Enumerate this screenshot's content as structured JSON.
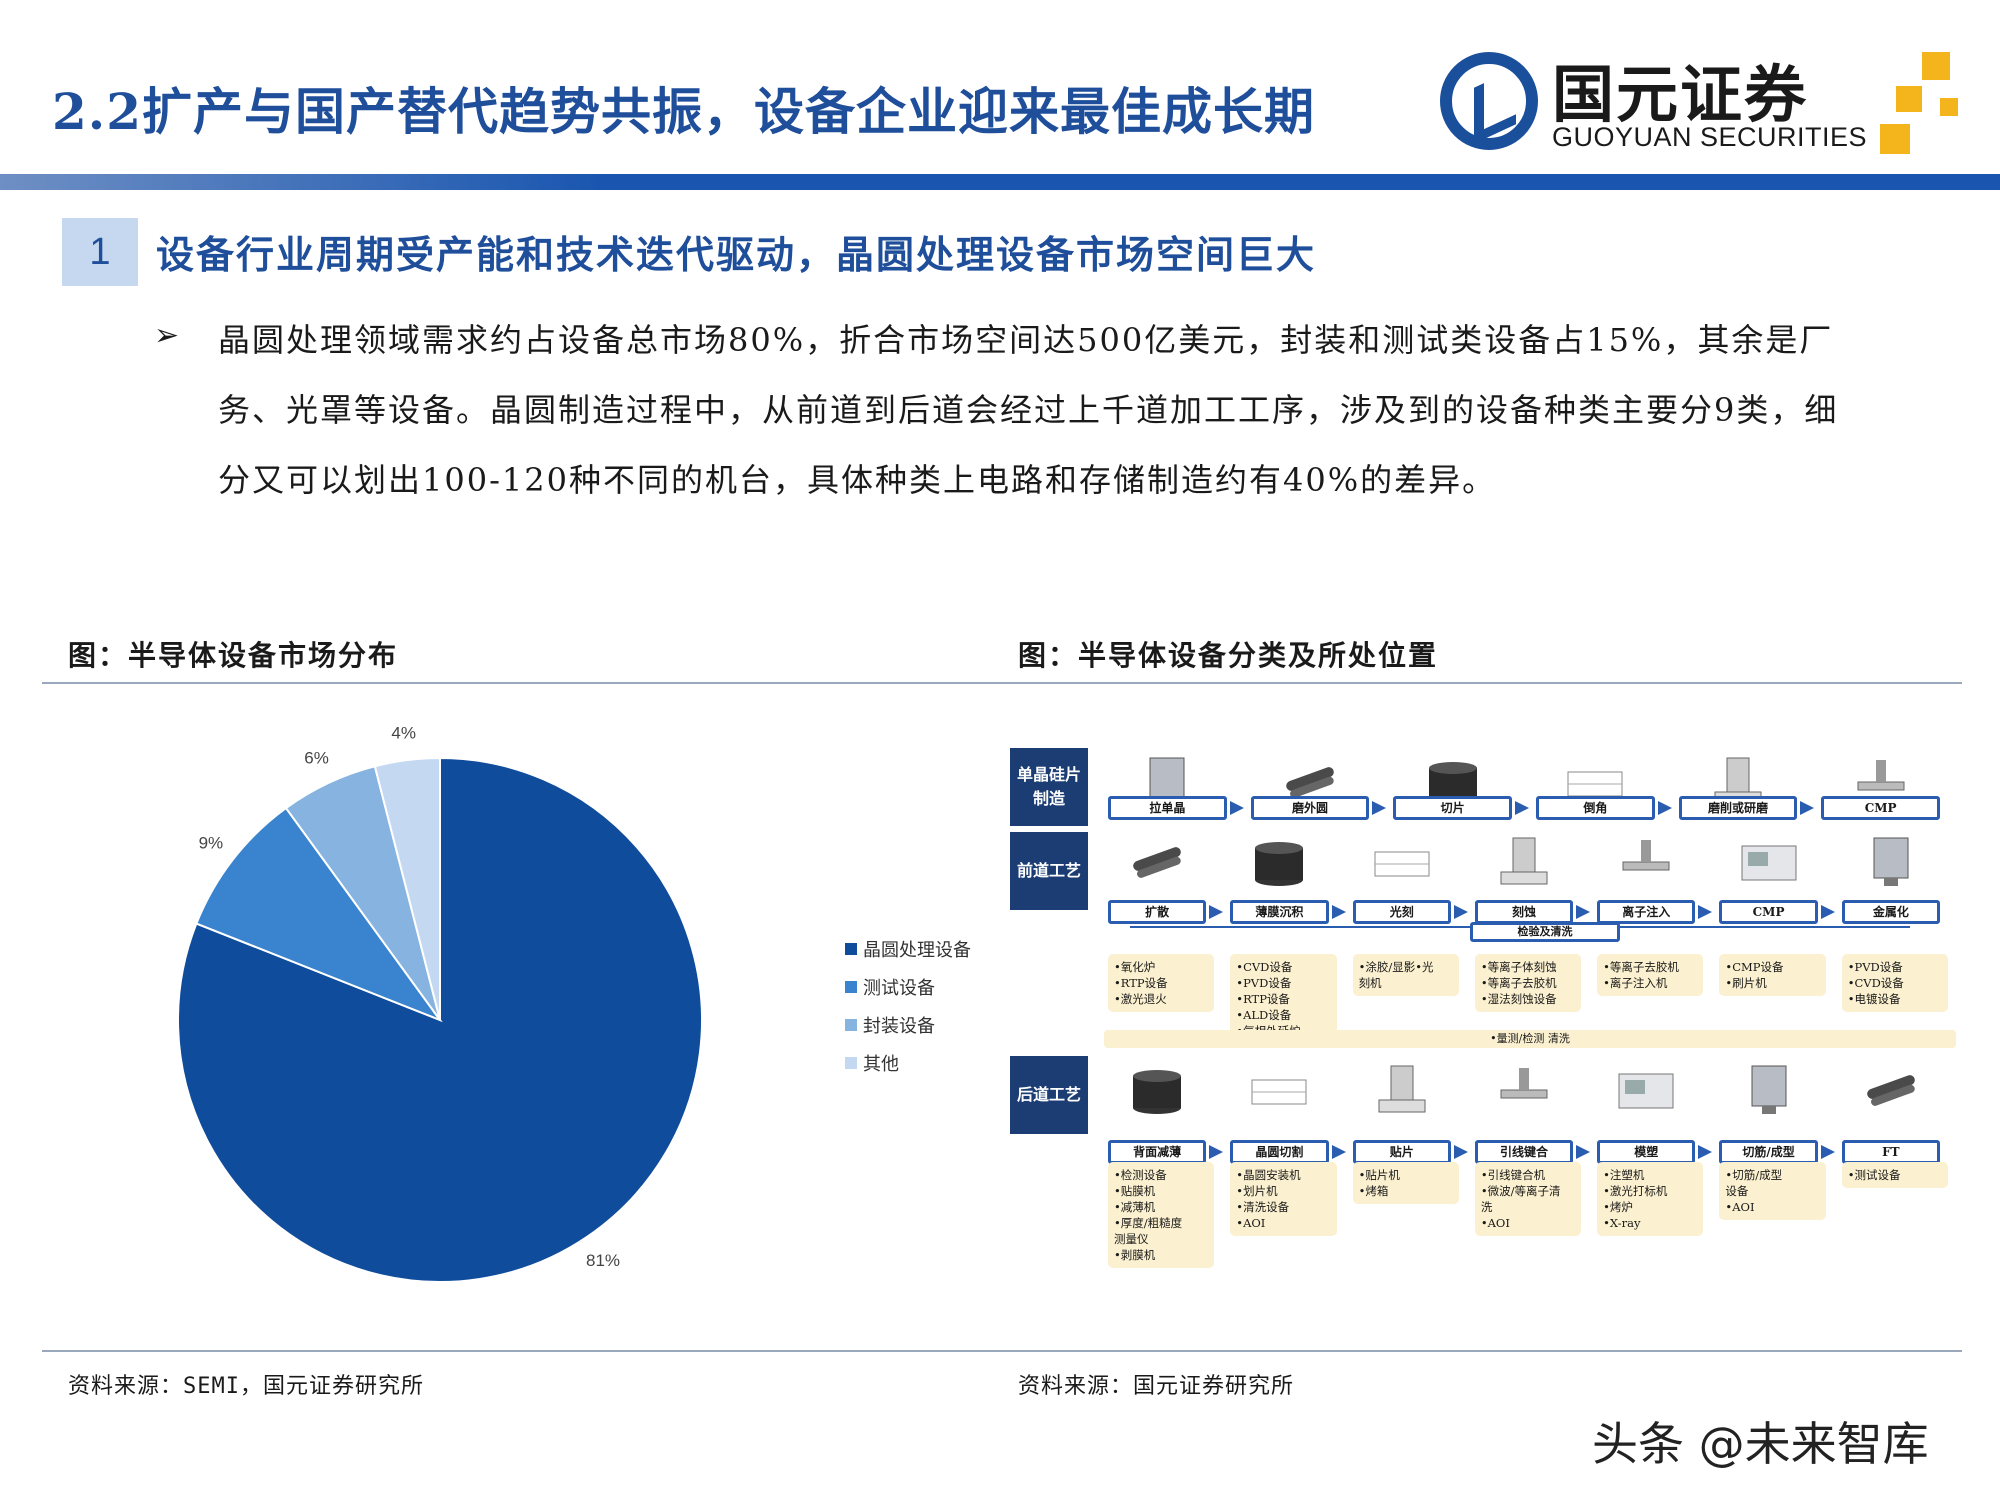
{
  "header": {
    "title": "2.2扩产与国产替代趋势共振，设备企业迎来最佳成长期",
    "logo_name": "国元证券",
    "logo_en": "GUOYUAN SECURITIES",
    "brand_color": "#1f4e9a",
    "accent_color": "#f3b51b"
  },
  "section": {
    "number": "1",
    "title": "设备行业周期受产能和技术迭代驱动，晶圆处理设备市场空间巨大"
  },
  "body": {
    "bullet_icon": "arrow-bullet-icon",
    "text": "晶圆处理领域需求约占设备总市场80%，折合市场空间达500亿美元，封装和测试类设备占15%，其余是厂务、光罩等设备。晶圆制造过程中，从前道到后道会经过上千道加工工序，涉及到的设备种类主要分9类，细分又可以划出100-120种不同的机台，具体种类上电路和存储制造约有40%的差异。"
  },
  "figures": {
    "left_title": "图：半导体设备市场分布",
    "right_title": "图：半导体设备分类及所处位置"
  },
  "chart_data": {
    "type": "pie",
    "title": "",
    "legend_position": "right",
    "categories": [
      "晶圆处理设备",
      "测试设备",
      "封装设备",
      "其他"
    ],
    "values": [
      81,
      9,
      6,
      4
    ],
    "labels": [
      "81%",
      "9%",
      "6%",
      "4%"
    ],
    "colors": [
      "#0f4c9c",
      "#3a84cf",
      "#86b3e0",
      "#c4d9f1"
    ]
  },
  "diagram": {
    "stages": [
      {
        "label": "单晶硅片制造",
        "steps": [
          "拉单晶",
          "磨外圆",
          "切片",
          "倒角",
          "磨削或研磨",
          "CMP"
        ]
      },
      {
        "label": "前道工艺",
        "steps": [
          "扩散",
          "薄膜沉积",
          "光刻",
          "刻蚀",
          "离子注入",
          "CMP",
          "金属化"
        ],
        "inspect_label": "检验及清洗",
        "equipment": [
          [
            "•氧化炉",
            "•RTP设备",
            "•激光退火"
          ],
          [
            "•CVD设备",
            "•PVD设备",
            "•RTP设备",
            "•ALD设备",
            "•气相外延炉"
          ],
          [
            "•涂胶/显影•光",
            "刻机"
          ],
          [
            "•等离子体刻蚀",
            "•等离子去胶机",
            "•湿法刻蚀设备"
          ],
          [
            "•等离子去胶机",
            "•离子注入机"
          ],
          [
            "•CMP设备",
            "•刷片机"
          ],
          [
            "•PVD设备",
            "•CVD设备",
            "•电镀设备"
          ]
        ],
        "band_label": "•量测/检测 清洗"
      },
      {
        "label": "后道工艺",
        "steps": [
          "背面减薄",
          "晶圆切割",
          "贴片",
          "引线键合",
          "模塑",
          "切筋/成型",
          "FT"
        ],
        "equipment": [
          [
            "•检测设备",
            "•贴膜机",
            "•减薄机",
            "•厚度/粗糙度",
            "测量仪",
            "•剥膜机"
          ],
          [
            "•晶圆安装机",
            "•划片机",
            "•清洗设备",
            "•AOI"
          ],
          [
            "•贴片机",
            "•烤箱"
          ],
          [
            "•引线键合机",
            "•微波/等离子清",
            "洗",
            "•AOI"
          ],
          [
            "•注塑机",
            "•激光打标机",
            "•烤炉",
            "•X-ray"
          ],
          [
            "•切筋/成型",
            "设备",
            "•AOI"
          ],
          [
            "•测试设备"
          ]
        ]
      }
    ]
  },
  "sources": {
    "left": "资料来源：SEMI，国元证券研究所",
    "right": "资料来源：国元证券研究所"
  },
  "watermark": "头条 @未来智库"
}
